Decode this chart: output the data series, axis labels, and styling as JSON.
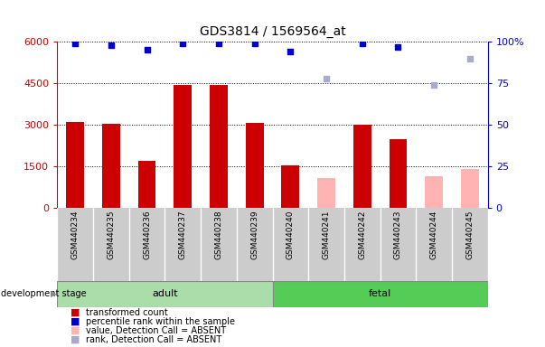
{
  "title": "GDS3814 / 1569564_at",
  "samples": [
    "GSM440234",
    "GSM440235",
    "GSM440236",
    "GSM440237",
    "GSM440238",
    "GSM440239",
    "GSM440240",
    "GSM440241",
    "GSM440242",
    "GSM440243",
    "GSM440244",
    "GSM440245"
  ],
  "bar_values": [
    3100,
    3050,
    1700,
    4450,
    4450,
    3080,
    1550,
    null,
    3020,
    2500,
    null,
    null
  ],
  "absent_bar_values": [
    null,
    null,
    null,
    null,
    null,
    null,
    null,
    1100,
    null,
    null,
    1150,
    1400
  ],
  "bar_color_present": "#cc0000",
  "bar_color_absent": "#ffb3b3",
  "scatter_present_color": "#0000cc",
  "scatter_absent_color": "#aaaacc",
  "scatter_values": [
    99,
    98,
    95,
    99,
    99,
    99,
    94,
    null,
    99,
    97,
    null,
    null
  ],
  "scatter_absent_values": [
    null,
    null,
    null,
    null,
    null,
    null,
    null,
    78,
    null,
    null,
    74,
    90
  ],
  "ylim_left": [
    0,
    6000
  ],
  "ylim_right": [
    0,
    100
  ],
  "yticks_left": [
    0,
    1500,
    3000,
    4500,
    6000
  ],
  "yticks_right": [
    0,
    25,
    50,
    75,
    100
  ],
  "adult_label": "adult",
  "fetal_label": "fetal",
  "n_adult": 6,
  "n_fetal": 6,
  "stage_label": "development stage",
  "adult_color": "#aaddaa",
  "fetal_color": "#55cc55",
  "panel_bg": "#cccccc",
  "legend_items": [
    {
      "label": "transformed count",
      "color": "#cc0000"
    },
    {
      "label": "percentile rank within the sample",
      "color": "#0000cc"
    },
    {
      "label": "value, Detection Call = ABSENT",
      "color": "#ffb3b3"
    },
    {
      "label": "rank, Detection Call = ABSENT",
      "color": "#aaaacc"
    }
  ]
}
